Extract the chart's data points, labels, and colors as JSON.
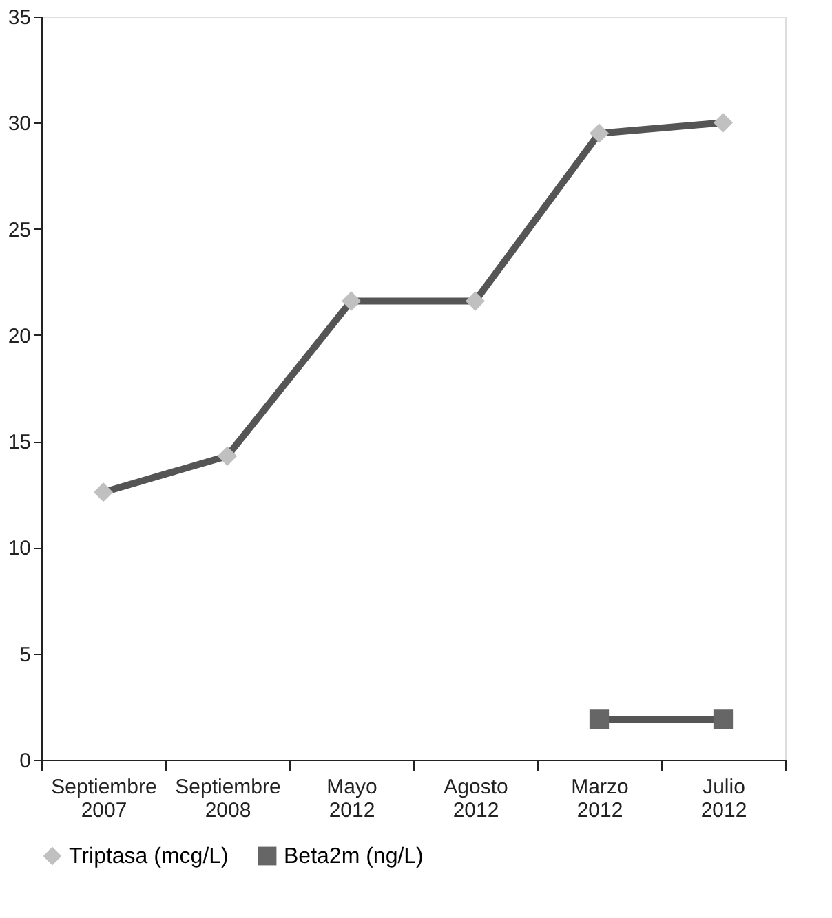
{
  "chart_data": {
    "type": "line",
    "categories": [
      "Septiembre 2007",
      "Septiembre 2008",
      "Mayo 2012",
      "Agosto 2012",
      "Marzo 2012",
      "Julio 2012"
    ],
    "series": [
      {
        "name": "Triptasa (mcg/L)",
        "color": "#c0c0c0",
        "marker": "diamond",
        "values": [
          12.6,
          14.3,
          21.6,
          21.6,
          29.5,
          30.0
        ]
      },
      {
        "name": "Beta2m (ng/L)",
        "color": "#666666",
        "marker": "square",
        "values": [
          null,
          null,
          null,
          null,
          1.9,
          1.9
        ]
      }
    ],
    "line_style": "solid",
    "ylim": [
      0,
      35
    ],
    "yticks": [
      0,
      5,
      10,
      15,
      20,
      25,
      30,
      35
    ],
    "grid": false,
    "legend": "bottom"
  }
}
